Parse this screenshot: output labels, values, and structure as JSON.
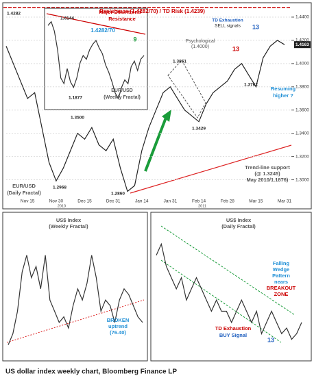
{
  "chart_data": [
    {
      "type": "line",
      "categories": [
        null,
        null,
        null,
        "Nov 15",
        null,
        null,
        null,
        "Nov 30",
        null,
        null,
        null,
        "Dec 15",
        null,
        null,
        null,
        "Dec 31",
        null,
        null,
        null,
        "Jan 14",
        null,
        null,
        null,
        "Jan 31",
        null,
        null,
        null,
        "Feb 14",
        null,
        null,
        null,
        "Feb 28",
        null,
        null,
        null,
        "Mar 15",
        null,
        null,
        null,
        "Mar 31"
      ],
      "values": [
        1.415,
        1.4,
        1.385,
        1.37,
        1.375,
        1.345,
        1.315,
        1.299,
        1.31,
        1.325,
        1.34,
        1.335,
        1.345,
        1.33,
        1.325,
        1.335,
        1.31,
        1.29,
        1.295,
        1.325,
        1.345,
        1.36,
        1.375,
        1.38,
        1.37,
        1.36,
        1.355,
        1.35,
        1.365,
        1.375,
        1.38,
        1.385,
        1.395,
        1.4,
        1.39,
        1.38,
        1.405,
        1.415,
        1.42,
        1.4163
      ],
      "color": "#222222",
      "ylim": [
        1.285,
        1.45
      ],
      "yticks": [
        {
          "value": 1.3,
          "label": "1.3000"
        },
        {
          "value": 1.32,
          "label": "1.3200"
        },
        {
          "value": 1.34,
          "label": "1.3400"
        },
        {
          "value": 1.36,
          "label": "1.3600"
        },
        {
          "value": 1.38,
          "label": "1.3800"
        },
        {
          "value": 1.4,
          "label": "1.4000"
        },
        {
          "value": 1.42,
          "label": "1.4200"
        },
        {
          "value": 1.44,
          "label": "1.4400"
        }
      ],
      "grid": true,
      "annotations": [
        "Resistance (1.4282/70) / TD Risk (1.4239)",
        "TD Exhaustion",
        "SELL signals",
        "13",
        "13",
        "Psychological",
        "(1.4000)",
        "1.3861",
        "1.3429",
        "1.3762",
        "Resuming",
        "higher ?",
        "Trend-line support",
        "(@ 1.3245)",
        "May 2010/1.1876)",
        "EUR/USD",
        "(Daily Fractal)",
        "1.3500",
        "1.2968",
        "1.2860",
        "1.4282",
        "2010",
        "2011"
      ]
    },
    {
      "type": "line",
      "values": [
        1.58,
        1.6,
        1.55,
        1.45,
        1.3,
        1.27,
        1.35,
        1.28,
        1.25,
        1.3,
        1.38,
        1.42,
        1.4,
        1.45,
        1.48,
        1.5,
        1.46,
        1.43,
        1.37,
        1.33,
        1.28,
        1.22,
        1.19,
        1.25,
        1.29,
        1.27,
        1.36,
        1.39,
        1.34,
        1.4,
        1.42
      ],
      "color": "#333333",
      "ylim": [
        1.15,
        1.65
      ],
      "annotations": [
        "1.6144",
        "Major Downtrend",
        "Resistance",
        "1.4282/70",
        "9",
        "EUR/USD",
        "(Weekly Fractal)",
        "1.1877"
      ]
    },
    {
      "type": "line",
      "values": [
        72,
        74,
        78,
        85,
        88,
        84,
        86,
        82,
        88,
        80,
        78,
        76,
        77,
        75,
        79,
        82,
        80,
        83,
        88,
        84,
        78,
        80,
        79,
        76,
        80,
        82,
        81,
        79,
        77,
        76
      ],
      "color": "#333333",
      "ylim": [
        70,
        92
      ],
      "annotations": [
        "US$ Index",
        "(Weekly Fractal)",
        "BROKEN",
        "uptrend",
        "(76.40)"
      ]
    },
    {
      "type": "line",
      "values": [
        83,
        84,
        82,
        81,
        80,
        81,
        79,
        80,
        81,
        80,
        79,
        78,
        79,
        78,
        78,
        77,
        78,
        79,
        78,
        77,
        78,
        76,
        77,
        78,
        77,
        76,
        76.5,
        75.5,
        76,
        77
      ],
      "color": "#333333",
      "ylim": [
        74,
        85
      ],
      "annotations": [
        "US$ Index",
        "(Daily Fractal)",
        "Falling",
        "Wedge",
        "Pattern",
        "nears",
        "BREAKOUT",
        "ZONE",
        "TD Exhaustion",
        "BUY Signal",
        "13"
      ]
    }
  ],
  "caption": "US dollar index weekly chart, Bloomberg Finance LP"
}
